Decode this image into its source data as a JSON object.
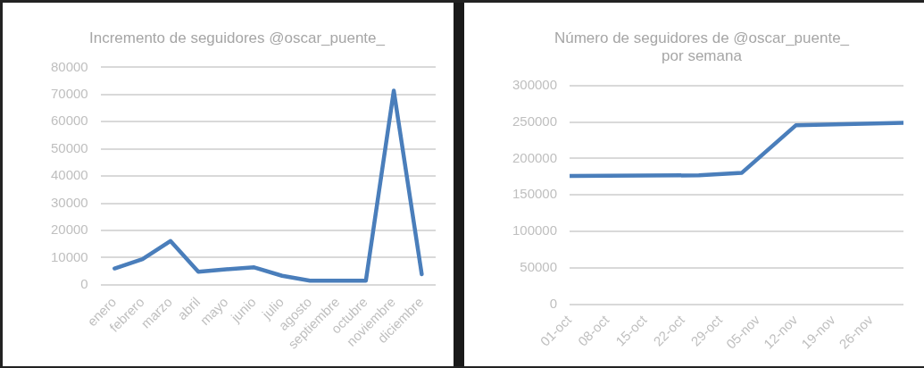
{
  "chart_data": [
    {
      "type": "line",
      "title": "Incremento de seguidores @oscar_puente_",
      "categories": [
        "enero",
        "febrero",
        "marzo",
        "abril",
        "mayo",
        "junio",
        "julio",
        "agosto",
        "septiembre",
        "octubre",
        "noviembre",
        "diciembre"
      ],
      "series": [
        {
          "color": "#4a7ebb",
          "values": [
            6000,
            9400,
            16100,
            4800,
            5700,
            6400,
            3300,
            1500,
            1500,
            1500,
            71400,
            3900
          ]
        }
      ],
      "ylim": [
        0,
        80000
      ],
      "yticks": [
        0,
        10000,
        20000,
        30000,
        40000,
        50000,
        60000,
        70000,
        80000
      ],
      "grid": "y",
      "legend": false,
      "marker": "none",
      "line_style": "solid"
    },
    {
      "type": "line",
      "title": "Número de seguidores de @oscar_puente_\npor semana",
      "series": [
        {
          "color": "#4a7ebb",
          "x": [
            "--10-01",
            "--10-25",
            "--11-02",
            "--11-12",
            "--12-02"
          ],
          "values": [
            176000,
            177000,
            180500,
            245500,
            249000
          ]
        }
      ],
      "xlim": [
        "--10-01",
        "--12-02"
      ],
      "xticks": [
        {
          "value": "--10-01",
          "label": "01-oct"
        },
        {
          "value": "--10-08",
          "label": "08-oct"
        },
        {
          "value": "--10-15",
          "label": "15-oct"
        },
        {
          "value": "--10-22",
          "label": "22-oct"
        },
        {
          "value": "--10-29",
          "label": "29-oct"
        },
        {
          "value": "--11-05",
          "label": "05-nov"
        },
        {
          "value": "--11-12",
          "label": "12-nov"
        },
        {
          "value": "--11-19",
          "label": "19-nov"
        },
        {
          "value": "--11-26",
          "label": "26-nov"
        }
      ],
      "ylim": [
        0,
        300000
      ],
      "yticks": [
        0,
        50000,
        100000,
        150000,
        200000,
        250000,
        300000
      ],
      "grid": "y",
      "legend": false,
      "marker": "none",
      "line_style": "solid"
    }
  ]
}
